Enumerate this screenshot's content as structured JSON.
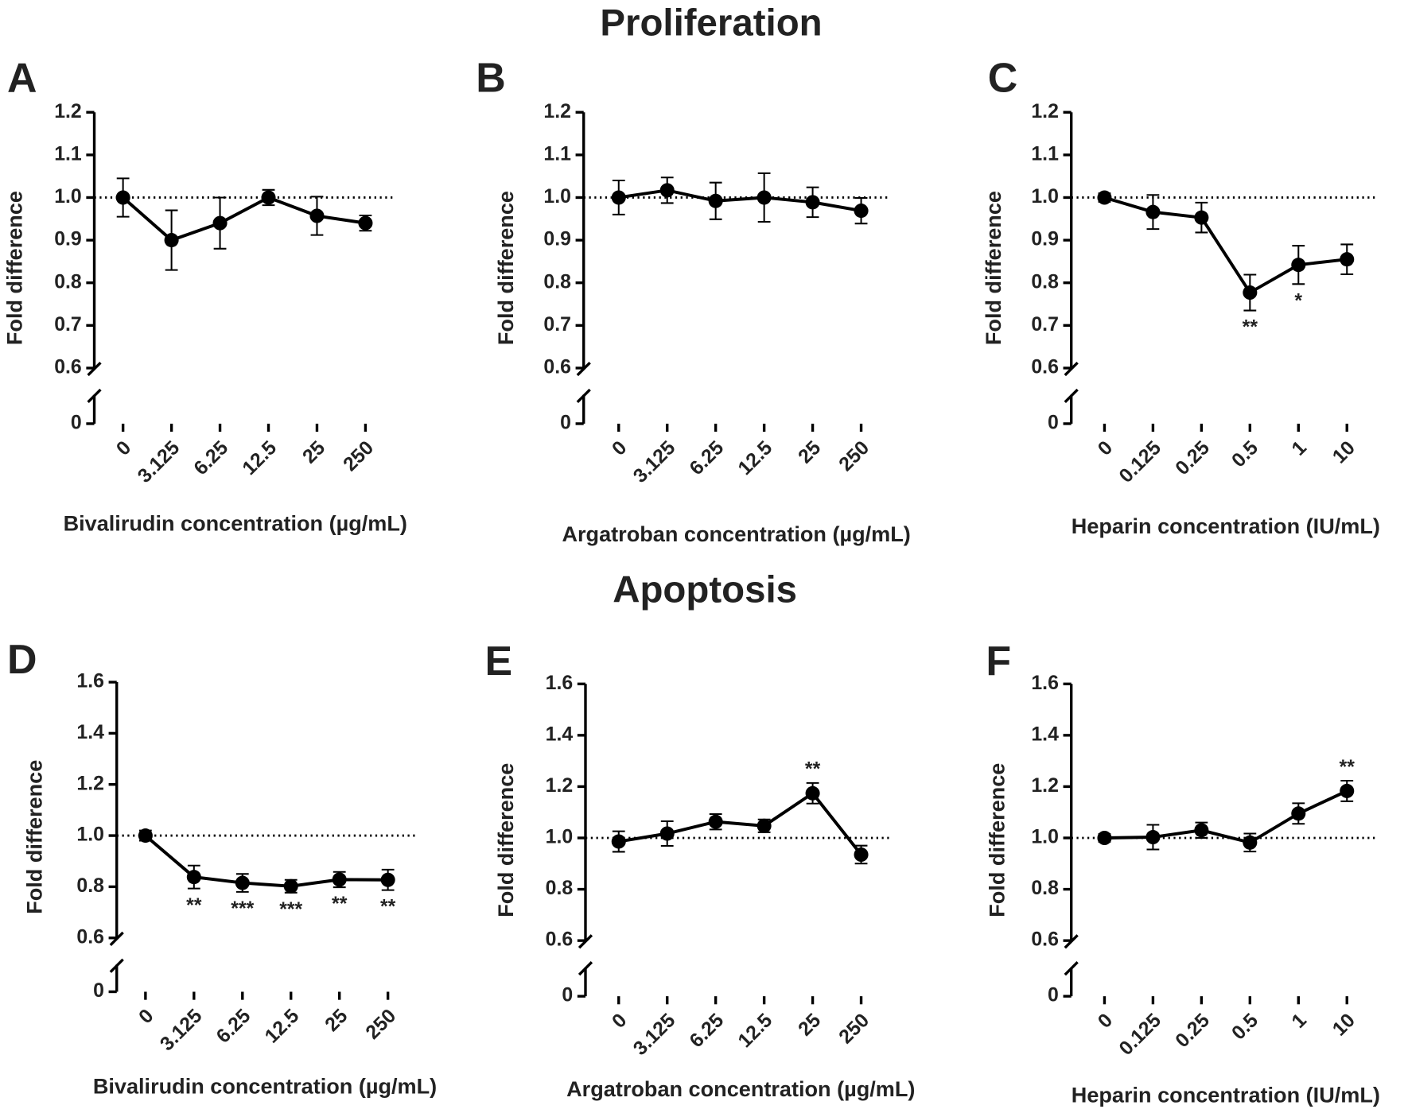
{
  "titles": [
    "Proliferation",
    "Apoptosis"
  ],
  "chart_data": [
    {
      "type": "line",
      "panel_label": "A",
      "ylabel": "Fold difference",
      "xlabel": "Bivalirudin concentration (µg/mL)",
      "color": "#000000",
      "categories": [
        "0",
        "3.125",
        "6.25",
        "12.5",
        "25",
        "250"
      ],
      "values": [
        1.0,
        0.9,
        0.94,
        1.0,
        0.957,
        0.94
      ],
      "errors": [
        0.045,
        0.07,
        0.06,
        0.018,
        0.045,
        0.018
      ],
      "annotations": [
        null,
        null,
        null,
        null,
        null,
        null
      ],
      "annotation_position": "below",
      "ylim": [
        0.6,
        1.2
      ],
      "yticks": [
        0.6,
        0.7,
        0.8,
        0.9,
        {
          "value": 1,
          "label": "1.0"
        },
        1.1,
        1.2
      ],
      "lower_yticks": [
        0
      ],
      "axis_break": true,
      "reference_line": 1
    },
    {
      "type": "line",
      "panel_label": "B",
      "ylabel": "Fold difference",
      "xlabel": "Argatroban concentration (µg/mL)",
      "color": "#000000",
      "categories": [
        "0",
        "3.125",
        "6.25",
        "12.5",
        "25",
        "250"
      ],
      "values": [
        1.0,
        1.017,
        0.992,
        1.0,
        0.989,
        0.969
      ],
      "errors": [
        0.04,
        0.03,
        0.043,
        0.057,
        0.035,
        0.03
      ],
      "annotations": [
        null,
        null,
        null,
        null,
        null,
        null
      ],
      "annotation_position": "below",
      "ylim": [
        0.6,
        1.2
      ],
      "yticks": [
        0.6,
        0.7,
        0.8,
        0.9,
        {
          "value": 1,
          "label": "1.0"
        },
        1.1,
        1.2
      ],
      "lower_yticks": [
        0
      ],
      "axis_break": true,
      "reference_line": 1
    },
    {
      "type": "line",
      "panel_label": "C",
      "ylabel": "Fold difference",
      "xlabel": "Heparin concentration (IU/mL)",
      "color": "#000000",
      "categories": [
        "0",
        "0.125",
        "0.25",
        "0.5",
        "1",
        "10"
      ],
      "values": [
        1.0,
        0.966,
        0.953,
        0.777,
        0.842,
        0.855
      ],
      "errors": [
        0.01,
        0.04,
        0.035,
        0.042,
        0.045,
        0.035
      ],
      "annotations": [
        null,
        null,
        null,
        "**",
        "*",
        null
      ],
      "annotation_position": "below",
      "ylim": [
        0.6,
        1.2
      ],
      "yticks": [
        0.6,
        0.7,
        0.8,
        0.9,
        {
          "value": 1,
          "label": "1.0"
        },
        1.1,
        1.2
      ],
      "lower_yticks": [
        0
      ],
      "axis_break": true,
      "reference_line": 1
    },
    {
      "type": "line",
      "panel_label": "D",
      "ylabel": "Fold difference",
      "xlabel": "Bivalirudin concentration (µg/mL)",
      "color": "#000000",
      "categories": [
        "0",
        "3.125",
        "6.25",
        "12.5",
        "25",
        "250"
      ],
      "values": [
        1.0,
        0.838,
        0.815,
        0.802,
        0.828,
        0.827
      ],
      "errors": [
        0.02,
        0.045,
        0.035,
        0.025,
        0.03,
        0.04
      ],
      "annotations": [
        null,
        "**",
        "***",
        "***",
        "**",
        "**"
      ],
      "annotation_position": "below",
      "ylim": [
        0.6,
        1.6
      ],
      "yticks": [
        0.6,
        0.8,
        {
          "value": 1,
          "label": "1.0"
        },
        1.2,
        1.4,
        1.6
      ],
      "lower_yticks": [
        0
      ],
      "axis_break": true,
      "reference_line": 1
    },
    {
      "type": "line",
      "panel_label": "E",
      "ylabel": "Fold difference",
      "xlabel": "Argatroban concentration (µg/mL)",
      "color": "#000000",
      "categories": [
        "0",
        "3.125",
        "6.25",
        "12.5",
        "25",
        "250"
      ],
      "values": [
        0.986,
        1.017,
        1.063,
        1.047,
        1.174,
        0.935
      ],
      "errors": [
        0.04,
        0.048,
        0.03,
        0.025,
        0.04,
        0.035
      ],
      "annotations": [
        null,
        null,
        null,
        null,
        "**",
        null
      ],
      "annotation_position": "above",
      "ylim": [
        0.6,
        1.6
      ],
      "yticks": [
        0.6,
        0.8,
        {
          "value": 1,
          "label": "1.0"
        },
        1.2,
        1.4,
        1.6
      ],
      "lower_yticks": [
        0
      ],
      "axis_break": true,
      "reference_line": 1
    },
    {
      "type": "line",
      "panel_label": "F",
      "ylabel": "Fold difference",
      "xlabel": "Heparin concentration (IU/mL)",
      "color": "#000000",
      "categories": [
        "0",
        "0.125",
        "0.25",
        "0.5",
        "1",
        "10"
      ],
      "values": [
        1.0,
        1.003,
        1.03,
        0.982,
        1.095,
        1.183
      ],
      "errors": [
        0.015,
        0.048,
        0.03,
        0.035,
        0.04,
        0.04
      ],
      "annotations": [
        null,
        null,
        null,
        null,
        null,
        "**"
      ],
      "annotation_position": "above",
      "ylim": [
        0.6,
        1.6
      ],
      "yticks": [
        0.6,
        0.8,
        {
          "value": 1,
          "label": "1.0"
        },
        1.2,
        1.4,
        1.6
      ],
      "lower_yticks": [
        0
      ],
      "axis_break": true,
      "reference_line": 1
    }
  ]
}
